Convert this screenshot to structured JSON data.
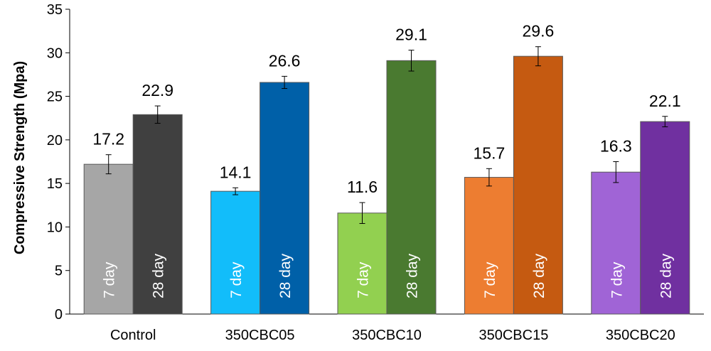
{
  "chart_data": {
    "type": "bar",
    "ylabel": "Compressive Strength (Mpa)",
    "xlabel": "",
    "ylim": [
      0,
      35
    ],
    "yticks": [
      0,
      5,
      10,
      15,
      20,
      25,
      30,
      35
    ],
    "grid": false,
    "categories": [
      "Control",
      "350CBC05",
      "350CBC10",
      "350CBC15",
      "350CBC20"
    ],
    "series": [
      {
        "name": "7 day",
        "values": [
          17.2,
          14.1,
          11.6,
          15.7,
          16.3
        ],
        "errors": [
          1.1,
          0.4,
          1.2,
          1.0,
          1.2
        ],
        "colors": [
          "#a6a6a6",
          "#12bdfa",
          "#92d050",
          "#ed7d31",
          "#a064d6"
        ]
      },
      {
        "name": "28 day",
        "values": [
          22.9,
          26.6,
          29.1,
          29.6,
          22.1
        ],
        "errors": [
          1.0,
          0.7,
          1.2,
          1.1,
          0.6
        ],
        "colors": [
          "#404040",
          "#0060a8",
          "#4a7a30",
          "#c55a11",
          "#7030a0"
        ]
      }
    ]
  }
}
